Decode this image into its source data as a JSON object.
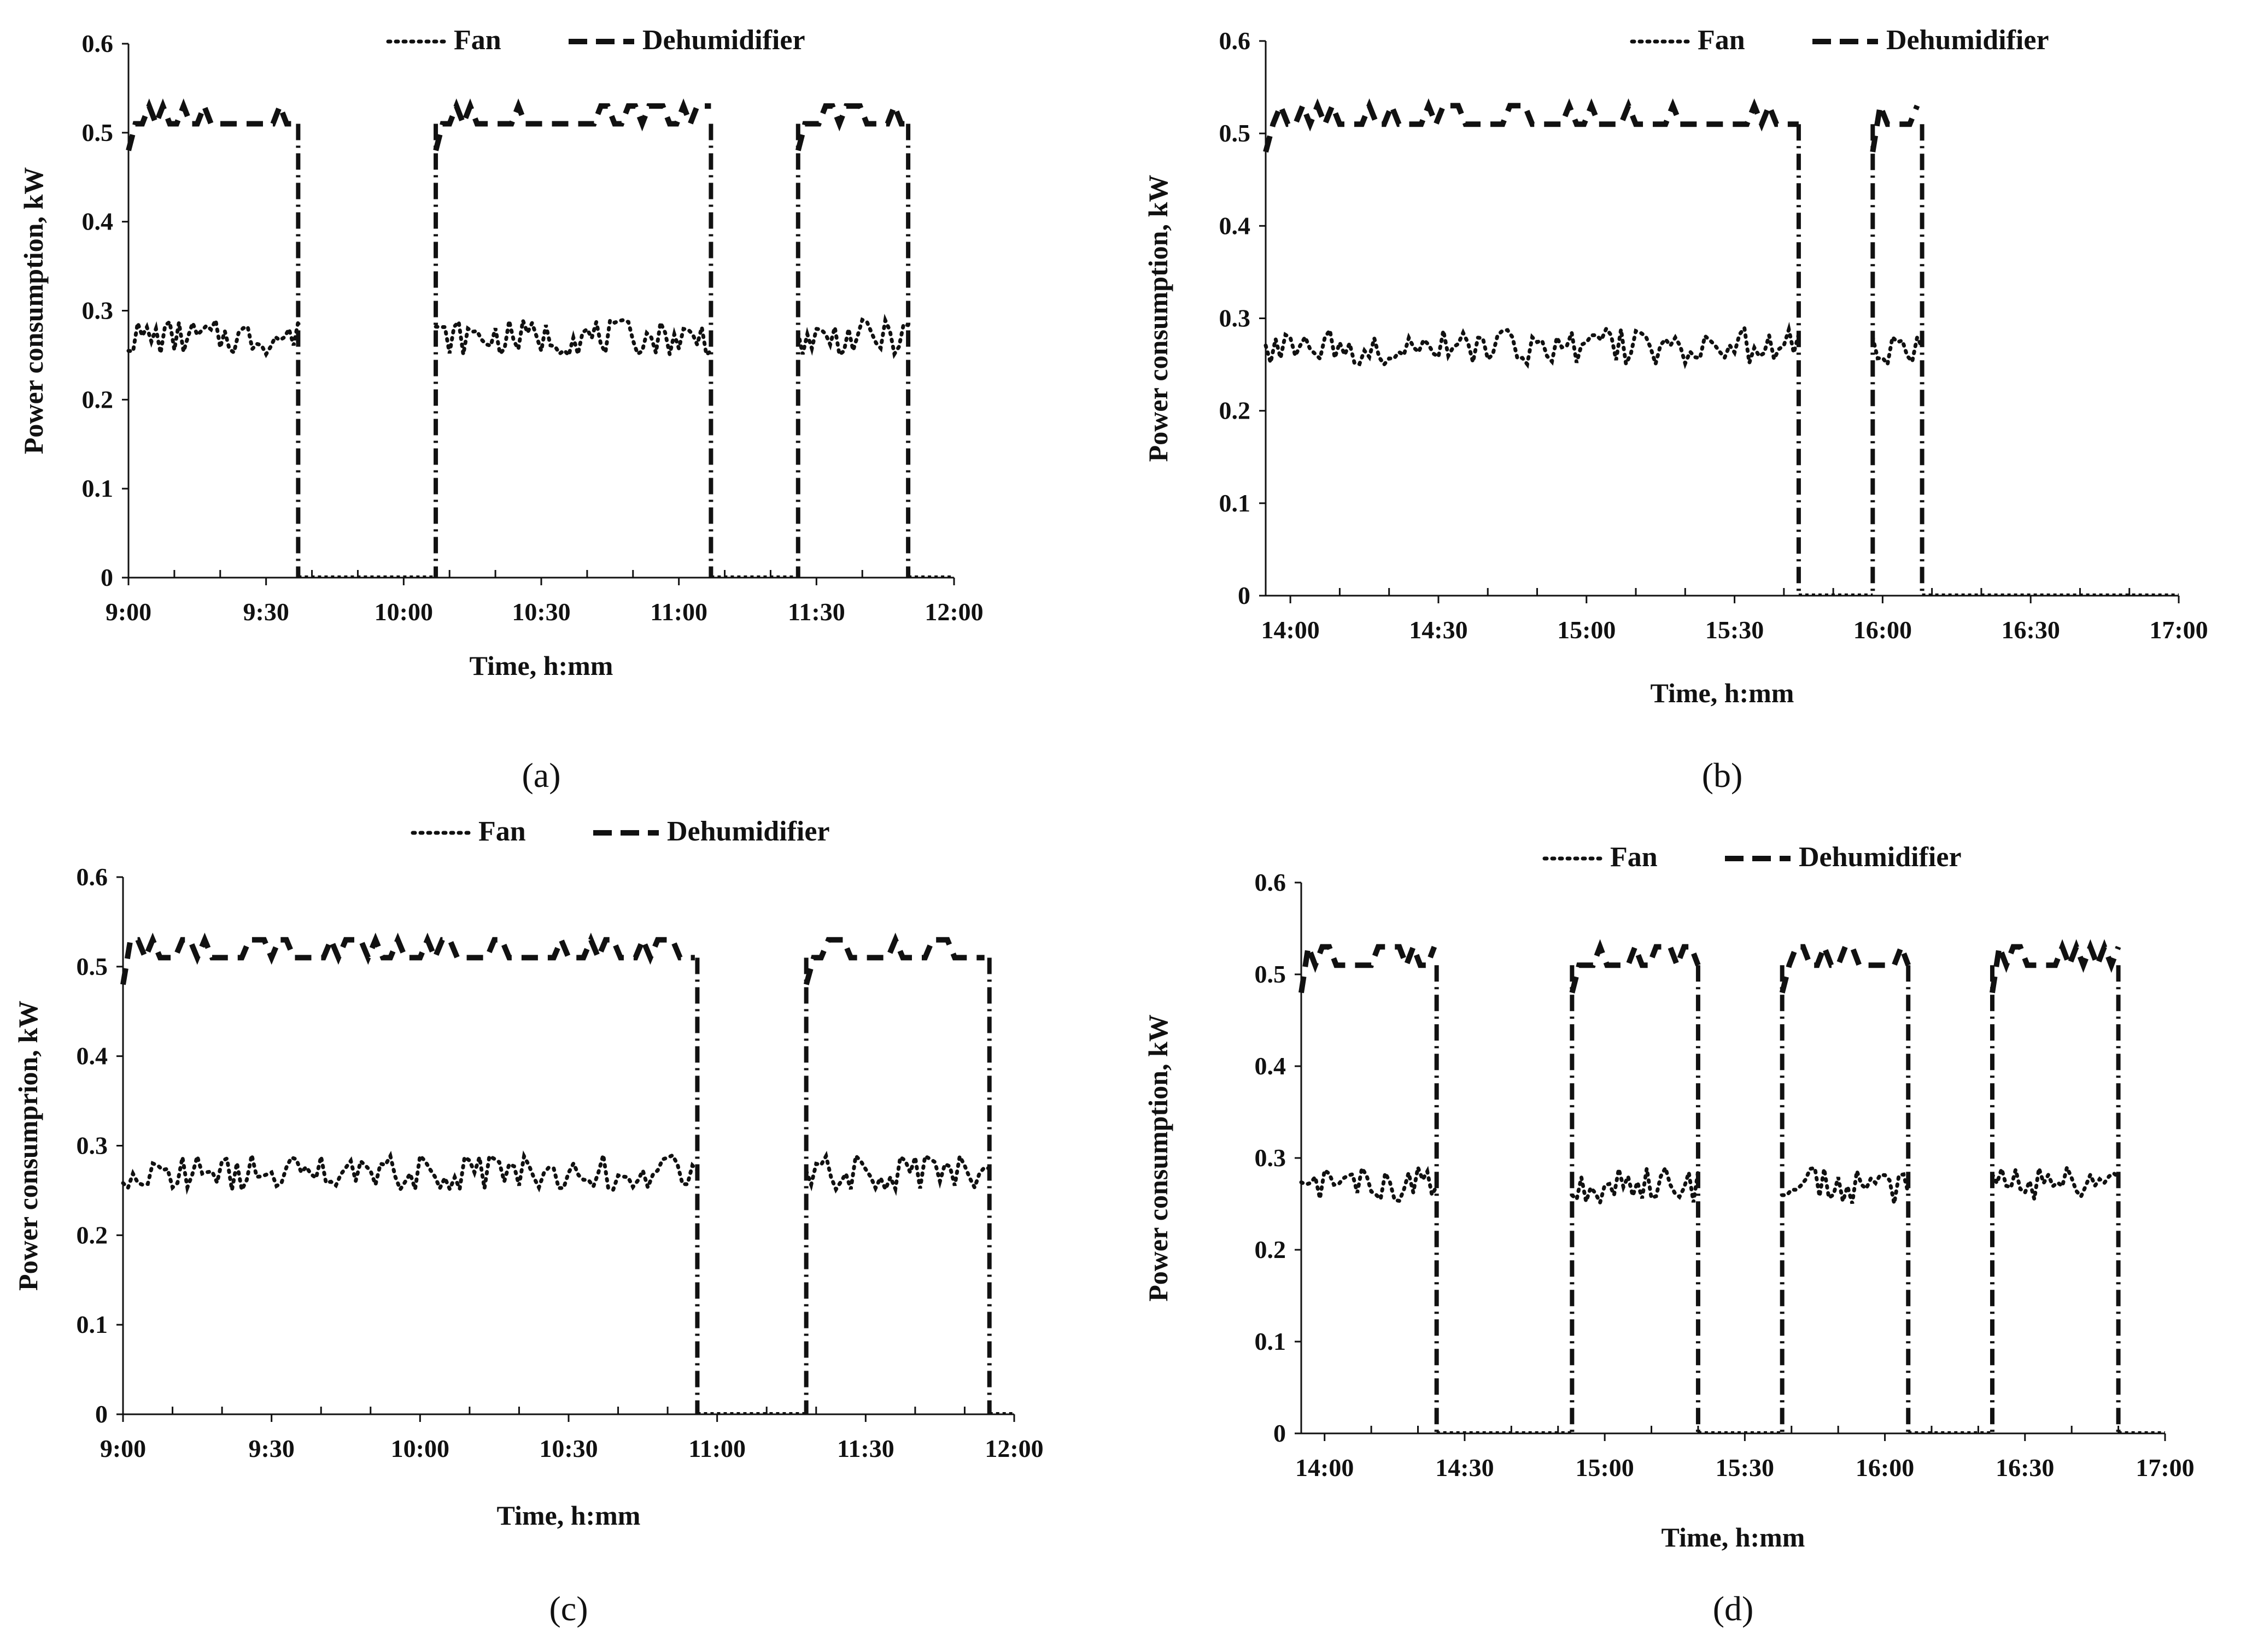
{
  "colors": {
    "ink": "#111111",
    "background": "#ffffff"
  },
  "chart_data": [
    {
      "type": "line",
      "caption": "(a)",
      "xlabel": "Time, h:mm",
      "ylabel": "Power consumption, kW",
      "x_ticks": [
        "9:00",
        "9:30",
        "10:00",
        "10:30",
        "11:00",
        "11:30",
        "12:00"
      ],
      "x_unit": "minutes_from_start",
      "xlim": [
        0,
        180
      ],
      "ylim": [
        0,
        0.6
      ],
      "y_ticks": [
        "0",
        "0.1",
        "0.2",
        "0.3",
        "0.4",
        "0.5",
        "0.6"
      ],
      "legend": [
        "Fan",
        "Dehumidifier"
      ],
      "legend_position": "top",
      "series": [
        {
          "name": "Fan",
          "style": "dotted",
          "on_level_kw": 0.27,
          "fluctuation_kw": 0.02,
          "off_level_kw": 0
        },
        {
          "name": "Dehumidifier",
          "style": "dashed",
          "on_level_kw": 0.51,
          "fluctuation_kw": 0.02,
          "off_level_kw": 0
        }
      ],
      "on_periods_min": [
        [
          0,
          37
        ],
        [
          67,
          127
        ],
        [
          146,
          170
        ]
      ]
    },
    {
      "type": "line",
      "caption": "(b)",
      "xlabel": "Time, h:mm",
      "ylabel": "Power consumption, kW",
      "x_ticks": [
        "14:00",
        "14:30",
        "15:00",
        "15:30",
        "16:00",
        "16:30",
        "17:00"
      ],
      "x_unit": "minutes_from_start",
      "xlim": [
        -5,
        180
      ],
      "ylim": [
        0,
        0.6
      ],
      "y_ticks": [
        "0",
        "0.1",
        "0.2",
        "0.3",
        "0.4",
        "0.5",
        "0.6"
      ],
      "legend": [
        "Fan",
        "Dehumidifier"
      ],
      "legend_position": "top",
      "series": [
        {
          "name": "Fan",
          "style": "dotted",
          "on_level_kw": 0.27,
          "fluctuation_kw": 0.02,
          "off_level_kw": 0
        },
        {
          "name": "Dehumidifier",
          "style": "dashed",
          "on_level_kw": 0.51,
          "fluctuation_kw": 0.02,
          "off_level_kw": 0
        }
      ],
      "on_periods_min": [
        [
          -5,
          103
        ],
        [
          118,
          128
        ]
      ]
    },
    {
      "type": "line",
      "caption": "(c)",
      "xlabel": "Time, h:mm",
      "ylabel": "Power consumprion, kW",
      "x_ticks": [
        "9:00",
        "9:30",
        "10:00",
        "10:30",
        "11:00",
        "11:30",
        "12:00"
      ],
      "x_unit": "minutes_from_start",
      "xlim": [
        0,
        180
      ],
      "ylim": [
        0,
        0.6
      ],
      "y_ticks": [
        "0",
        "0.1",
        "0.2",
        "0.3",
        "0.4",
        "0.5",
        "0.6"
      ],
      "legend": [
        "Fan",
        "Dehumidifier"
      ],
      "legend_position": "top",
      "series": [
        {
          "name": "Fan",
          "style": "dotted",
          "on_level_kw": 0.27,
          "fluctuation_kw": 0.02,
          "off_level_kw": 0
        },
        {
          "name": "Dehumidifier",
          "style": "dashed",
          "on_level_kw": 0.51,
          "fluctuation_kw": 0.02,
          "off_level_kw": 0
        }
      ],
      "on_periods_min": [
        [
          0,
          116
        ],
        [
          138,
          175
        ]
      ]
    },
    {
      "type": "line",
      "caption": "(d)",
      "xlabel": "Time, h:mm",
      "ylabel": "Power consumption,  kW",
      "x_ticks": [
        "14:00",
        "14:30",
        "15:00",
        "15:30",
        "16:00",
        "16:30",
        "17:00"
      ],
      "x_unit": "minutes_from_start",
      "xlim": [
        -5,
        180
      ],
      "ylim": [
        0,
        0.6
      ],
      "y_ticks": [
        "0",
        "0.1",
        "0.2",
        "0.3",
        "0.4",
        "0.5",
        "0.6"
      ],
      "legend": [
        "Fan",
        "Dehumidifier"
      ],
      "legend_position": "top",
      "series": [
        {
          "name": "Fan",
          "style": "dotted",
          "on_level_kw": 0.27,
          "fluctuation_kw": 0.02,
          "off_level_kw": 0
        },
        {
          "name": "Dehumidifier",
          "style": "dashed",
          "on_level_kw": 0.51,
          "fluctuation_kw": 0.02,
          "off_level_kw": 0
        }
      ],
      "on_periods_min": [
        [
          -5,
          24
        ],
        [
          53,
          80
        ],
        [
          98,
          125
        ],
        [
          143,
          170
        ]
      ]
    }
  ]
}
